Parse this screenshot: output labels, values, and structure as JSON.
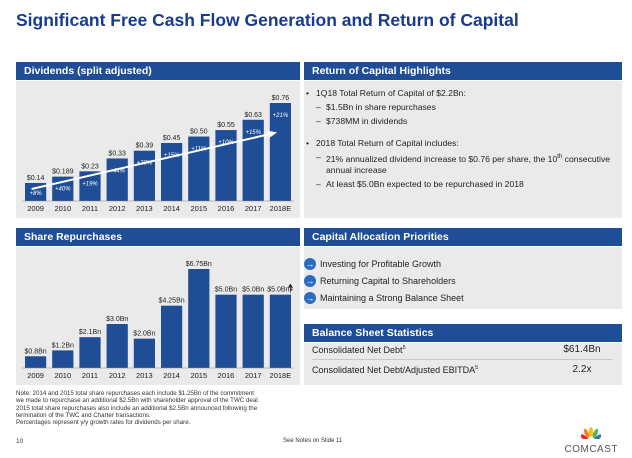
{
  "title": "Significant Free Cash Flow Generation and Return of Capital",
  "dividends": {
    "header": "Dividends (split adjusted)",
    "chart_data": {
      "type": "bar",
      "categories": [
        "2009",
        "2010",
        "2011",
        "2012",
        "2013",
        "2014",
        "2015",
        "2016",
        "2017",
        "2018E"
      ],
      "values": [
        0.14,
        0.189,
        0.23,
        0.33,
        0.39,
        0.45,
        0.5,
        0.55,
        0.63,
        0.76
      ],
      "value_labels": [
        "$0.14",
        "$0.189",
        "$0.23",
        "$0.33",
        "$0.39",
        "$0.45",
        "$0.50",
        "$0.55",
        "$0.63",
        "$0.76"
      ],
      "growth_labels": [
        "+8%",
        "+40%",
        "+19%",
        "+44%",
        "+20%",
        "+15%",
        "+11%",
        "+10%",
        "+15%",
        "+21%"
      ],
      "trend_arrow": true
    }
  },
  "repurchases": {
    "header": "Share Repurchases",
    "chart_data": {
      "type": "bar",
      "categories": [
        "2009",
        "2010",
        "2011",
        "2012",
        "2013",
        "2014",
        "2015",
        "2016",
        "2017",
        "2018E"
      ],
      "values": [
        0.8,
        1.2,
        2.1,
        3.0,
        2.0,
        4.25,
        6.75,
        5.0,
        5.0,
        5.0
      ],
      "value_labels": [
        "$0.8Bn",
        "$1.2Bn",
        "$2.1Bn",
        "$3.0Bn",
        "$2.0Bn",
        "$4.25Bn",
        "$6.75Bn",
        "$5.0Bn",
        "$5.0Bn",
        "$5.0Bn+"
      ],
      "last_bar_arrow": true
    }
  },
  "highlights": {
    "header": "Return of Capital Highlights",
    "bullet1": "1Q18 Total Return of Capital of $2.2Bn:",
    "b1_dash1": "$1.5Bn in share repurchases",
    "b1_dash2": "$738MM in dividends",
    "bullet2": "2018 Total Return of Capital includes:",
    "b2_dash1a": "21% annualized dividend increase to $0.76 per share, the 10",
    "b2_dash1_sup": "th",
    "b2_dash1b": " consecutive annual increase",
    "b2_dash2": "At least $5.0Bn expected to be repurchased in 2018"
  },
  "capital_allocation": {
    "header": "Capital Allocation Priorities",
    "items": [
      "Investing for Profitable Growth",
      "Returning Capital to Shareholders",
      "Maintaining a Strong Balance Sheet"
    ]
  },
  "balance_sheet": {
    "header": "Balance Sheet Statistics",
    "rows": [
      {
        "label": "Consolidated Net Debt",
        "sup": "5",
        "value": "$61.4Bn"
      },
      {
        "label": "Consolidated Net Debt/Adjusted EBITDA",
        "sup": "5",
        "value": "2.2x"
      }
    ]
  },
  "notes": [
    "Note: 2014 and 2015 total share repurchases each include $1.25Bn of the commitment",
    "we made to repurchase an additional $2.5Bn with shareholder approval of the TWC deal.",
    "2015 total share repurchases also include an additional $2.5Bn announced following the",
    "termination of the TWC and Charter transactions.",
    "Percentages represent y/y growth rates for dividends per share."
  ],
  "footer": {
    "page": "10",
    "see_notes": "See Notes on Slide 11",
    "logo_text": "COMCAST"
  },
  "colors": {
    "bar": "#1f4e96",
    "header": "#1f4e96",
    "title": "#1a3a8c",
    "panel": "#eaeaea"
  }
}
